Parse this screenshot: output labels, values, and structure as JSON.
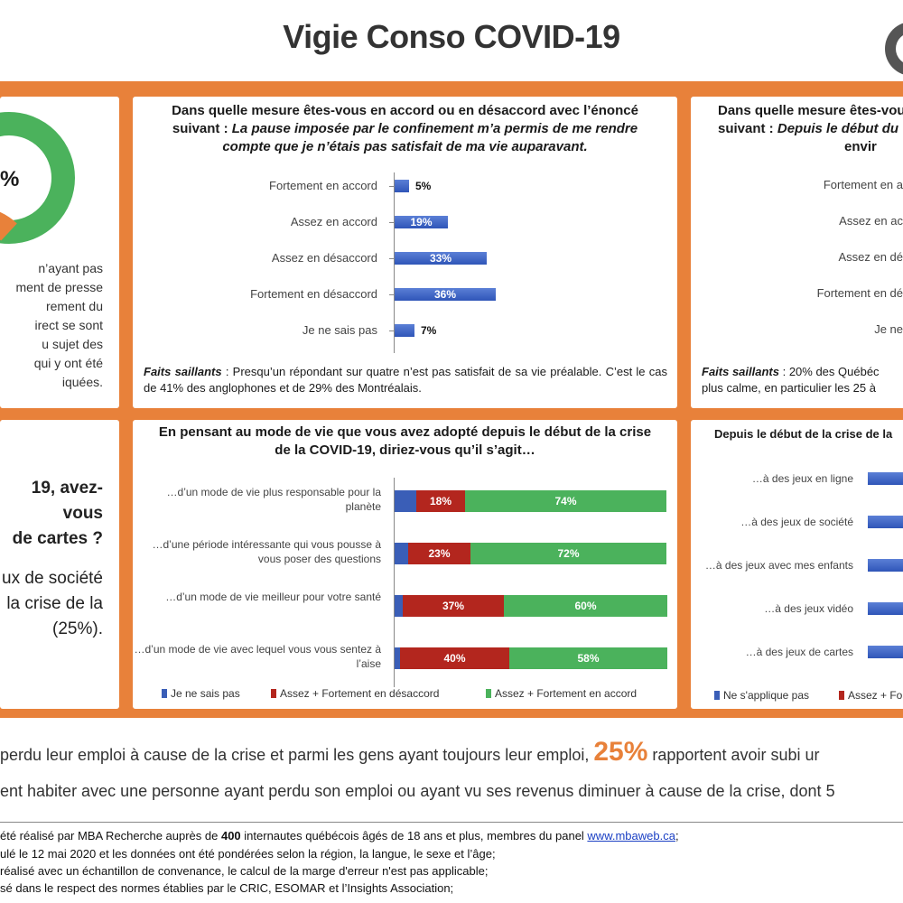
{
  "title": "Vigie Conso COVID-19",
  "colors": {
    "orange": "#e8813a",
    "blue": "#3a5eb7",
    "red": "#b3261e",
    "green": "#4bb25c"
  },
  "left_top": {
    "donut_label": "%",
    "text_lines": [
      "n’ayant pas",
      "ment de presse",
      "rement du",
      "irect se sont",
      "u sujet des",
      "qui y ont été",
      "iquées."
    ]
  },
  "left_bottom": {
    "lines": [
      "19, avez-vous",
      "de cartes ?",
      "ux de société",
      "la crise de la",
      "(25%)."
    ]
  },
  "top_mid": {
    "question_line1": "Dans quelle mesure êtes-vous en accord ou en désaccord avec l’énoncé",
    "question_prefix": "suivant : ",
    "question_italic1": "La pause imposée par le confinement m’a permis de me rendre",
    "question_italic2": "compte que je n’étais pas satisfait de ma vie auparavant.",
    "faits_label": "Faits saillants",
    "faits_text": " : Presqu’un répondant sur quatre n’est pas satisfait de sa vie préalable. C’est le cas de 41% des anglophones et de 29% des Montréalais."
  },
  "top_right": {
    "question_line1": "Dans quelle mesure êtes-vou",
    "question_line2_prefix": "suivant : ",
    "question_line2_italic": "Depuis le début du",
    "question_line3": "envir",
    "categories": [
      "Fortement en a",
      "Assez en ac",
      "Assez en dé",
      "Fortement en dé",
      "Je ne"
    ],
    "faits_label": "Faits saillants",
    "faits_text": " : 20% des Québéc",
    "faits_line2": "plus calme, en particulier les 25 à"
  },
  "bottom_mid": {
    "question_line1": "En pensant au mode de vie que vous avez adopté depuis le début de la crise",
    "question_line2": "de la COVID-19, diriez-vous qu’il s’agit…"
  },
  "bottom_right": {
    "question": "Depuis le début de la crise de la",
    "categories": [
      "…à des jeux en ligne",
      "…à des jeux de société",
      "…à des jeux avec mes enfants",
      "…à des jeux vidéo",
      "…à des jeux de cartes"
    ],
    "legend": [
      "Ne s'applique pas",
      "Assez + Fo"
    ]
  },
  "bottom_lines": {
    "line1_a": "perdu leur emploi à cause de la crise et parmi les gens ayant toujours leur emploi, ",
    "line1_big": "25%",
    "line1_b": " rapportent avoir subi ur",
    "line2": "ent habiter avec une personne ayant perdu son emploi ou ayant vu ses revenus diminuer à cause de la crise, dont 5"
  },
  "footnotes": {
    "f1_a": "été réalisé par MBA Recherche auprès de ",
    "f1_bold": "400",
    "f1_b": " internautes québécois âgés de 18 ans et plus, membres du panel ",
    "f1_link": "www.mbaweb.ca",
    "f1_c": ";",
    "f2": "ulé le 12 mai 2020 et les données ont été pondérées selon la région, la langue, le sexe et l’âge;",
    "f3": "réalisé avec un échantillon de convenance, le calcul de la marge d'erreur n'est pas applicable;",
    "f4": "sé dans le respect des normes établies par le CRIC, ESOMAR et l’Insights Association;"
  },
  "chart_data": [
    {
      "type": "bar",
      "orientation": "horizontal",
      "title": "Dans quelle mesure êtes-vous en accord ou en désaccord avec l’énoncé suivant : La pause imposée par le confinement m’a permis de me rendre compte que je n’étais pas satisfait de ma vie auparavant.",
      "categories": [
        "Fortement en accord",
        "Assez en accord",
        "Assez en désaccord",
        "Fortement en désaccord",
        "Je ne sais pas"
      ],
      "values": [
        5,
        19,
        33,
        36,
        7
      ],
      "labels": [
        "5%",
        "19%",
        "33%",
        "36%",
        "7%"
      ],
      "xlim": [
        0,
        100
      ]
    },
    {
      "type": "bar",
      "orientation": "horizontal",
      "stacked": true,
      "title": "En pensant au mode de vie que vous avez adopté depuis le début de la crise de la COVID-19, diriez-vous qu’il s’agit…",
      "categories": [
        "…d’un mode de vie plus responsable pour la planète",
        "…d’une période intéressante qui vous pousse à vous poser des questions",
        "…d’un mode de vie meilleur pour votre santé",
        "…d’un mode de vie avec lequel vous vous sentez à l’aise"
      ],
      "series": [
        {
          "name": "Je ne sais pas",
          "values": [
            8,
            5,
            3,
            2
          ]
        },
        {
          "name": "Assez + Fortement en désaccord",
          "values": [
            18,
            23,
            37,
            40
          ]
        },
        {
          "name": "Assez + Fortement en accord",
          "values": [
            74,
            72,
            60,
            58
          ]
        }
      ],
      "legend_position": "bottom"
    }
  ]
}
